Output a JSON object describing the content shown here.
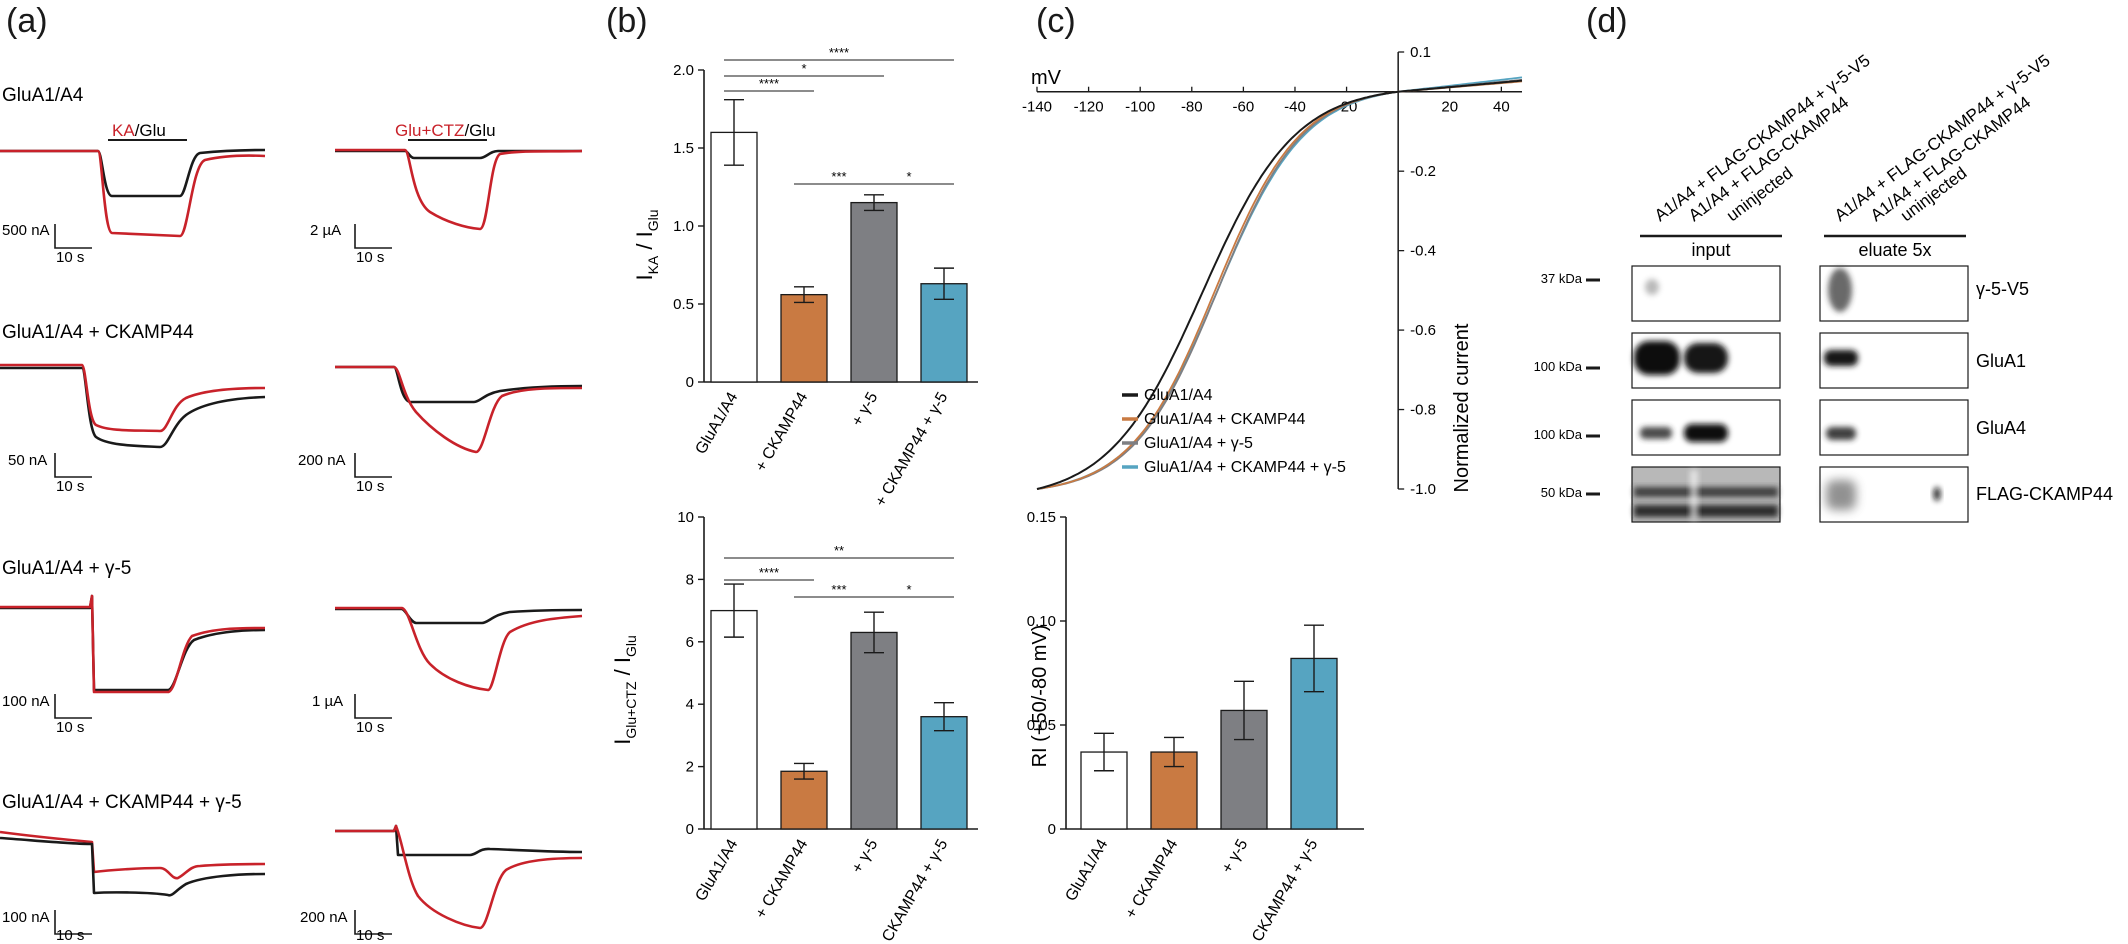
{
  "panel_labels": [
    "(a)",
    "(b)",
    "(c)",
    "(d)"
  ],
  "colors": {
    "black": "#1a1a1a",
    "red": "#c8222a",
    "white_bar": "#ffffff",
    "ckamp44": "#c97a42",
    "gamma5": "#7e7f83",
    "ckamp44_gamma5": "#56a4c1"
  },
  "panel_a": {
    "protocol_left": {
      "red": "KA",
      "sep": "/",
      "black": "Glu"
    },
    "protocol_right": {
      "red": "Glu+CTZ",
      "sep": "/",
      "black": "Glu"
    },
    "rows": [
      {
        "title": "GluA1/A4",
        "left_scale": "500 nA",
        "left_time": "10 s",
        "right_scale": "2 µA",
        "right_time": "10 s"
      },
      {
        "title": "GluA1/A4 + CKAMP44",
        "left_scale": "50 nA",
        "left_time": "10 s",
        "right_scale": "200 nA",
        "right_time": "10 s"
      },
      {
        "title": "GluA1/A4 + γ-5",
        "left_scale": "100 nA",
        "left_time": "10 s",
        "right_scale": "1 µA",
        "right_time": "10 s"
      },
      {
        "title": "GluA1/A4 + CKAMP44 + γ-5",
        "left_scale": "100 nA",
        "left_time": "10 s",
        "right_scale": "200 nA",
        "right_time": "10 s"
      }
    ]
  },
  "chart_data": [
    {
      "id": "b-top",
      "type": "bar",
      "ylabel_main": "I",
      "ylabel_sub1": "KA",
      "ylabel_sep": " / I",
      "ylabel_sub2": "Glu",
      "ylim": [
        0,
        2.0
      ],
      "yticks": [
        "0",
        "0.5",
        "1.0",
        "1.5",
        "2.0"
      ],
      "categories": [
        "GluA1/A4",
        "+ CKAMP44",
        "+ γ-5",
        "+ CKAMP44 + γ-5"
      ],
      "values": [
        1.6,
        0.56,
        1.15,
        0.63
      ],
      "errors": [
        0.21,
        0.05,
        0.05,
        0.1
      ],
      "significance": [
        {
          "from": 0,
          "to": 3,
          "label": "****"
        },
        {
          "from": 0,
          "to": 2,
          "label": "*"
        },
        {
          "from": 0,
          "to": 1,
          "label": "****"
        },
        {
          "from": 1,
          "to": 2,
          "label": "***"
        },
        {
          "from": 2,
          "to": 3,
          "label": "*"
        }
      ]
    },
    {
      "id": "b-bottom",
      "type": "bar",
      "ylabel_main": "I",
      "ylabel_sub1": "Glu+CTZ",
      "ylabel_sep": " / I",
      "ylabel_sub2": "Glu",
      "ylim": [
        0,
        10
      ],
      "yticks": [
        "0",
        "2",
        "4",
        "6",
        "8",
        "10"
      ],
      "categories": [
        "GluA1/A4",
        "+ CKAMP44",
        "+ γ-5",
        "+ CKAMP44 + γ-5"
      ],
      "values": [
        7.0,
        1.85,
        6.3,
        3.6
      ],
      "errors": [
        0.85,
        0.25,
        0.65,
        0.45
      ],
      "significance": [
        {
          "from": 0,
          "to": 3,
          "label": "**"
        },
        {
          "from": 0,
          "to": 1,
          "label": "****"
        },
        {
          "from": 1,
          "to": 2,
          "label": "***"
        },
        {
          "from": 2,
          "to": 3,
          "label": "*"
        }
      ]
    },
    {
      "id": "c-iv",
      "type": "line",
      "xlabel": "mV",
      "ylabel": "Normalized current",
      "xlim": [
        -140,
        48
      ],
      "ylim": [
        -1.0,
        0.1
      ],
      "xticks": [
        "-140",
        "-120",
        "-100",
        "-80",
        "-60",
        "-40",
        "-20",
        "20",
        "40"
      ],
      "xtick_values": [
        -140,
        -120,
        -100,
        -80,
        -60,
        -40,
        -20,
        20,
        40
      ],
      "yticks": [
        "0.1",
        "-0.2",
        "-0.4",
        "-0.6",
        "-0.8",
        "-1.0"
      ],
      "ytick_values": [
        0.1,
        -0.2,
        -0.4,
        -0.6,
        -0.8,
        -1.0
      ],
      "series": [
        {
          "name": "GluA1/A4",
          "vhalf": -76,
          "k": 18.0,
          "end": 0.028
        },
        {
          "name": "GluA1/A4 + CKAMP44",
          "vhalf": -71,
          "k": 16.5,
          "end": 0.026
        },
        {
          "name": "GluA1/A4 + γ-5",
          "vhalf": -70,
          "k": 16.5,
          "end": 0.03
        },
        {
          "name": "GluA1/A4 + CKAMP44 + γ-5",
          "vhalf": -70,
          "k": 17.0,
          "end": 0.036
        }
      ]
    },
    {
      "id": "c-ri",
      "type": "bar",
      "ylabel": "RI (+50/-80 mV)",
      "ylim": [
        0,
        0.15
      ],
      "yticks": [
        "0",
        "0.05",
        "0.10",
        "0.15"
      ],
      "categories": [
        "GluA1/A4",
        "+ CKAMP44",
        "+ γ-5",
        "+ CKAMP44 + γ-5"
      ],
      "values": [
        0.037,
        0.037,
        0.057,
        0.082
      ],
      "errors": [
        0.009,
        0.007,
        0.014,
        0.016
      ]
    }
  ],
  "panel_d": {
    "lane_labels_input": [
      "A1/A4 + FLAG-CKAMP44 + γ-5-V5",
      "A1/A4 + FLAG-CKAMP44",
      "uninjected"
    ],
    "lane_labels_eluate": [
      "A1/A4 + FLAG-CKAMP44 + γ-5-V5",
      "A1/A4 + FLAG-CKAMP44",
      "uninjected"
    ],
    "group_input": "input",
    "group_eluate": "eluate 5x",
    "rows": [
      {
        "marker": "37 kDa",
        "protein": "γ-5-V5"
      },
      {
        "marker": "100 kDa",
        "protein": "GluA1"
      },
      {
        "marker": "100 kDa",
        "protein": "GluA4"
      },
      {
        "marker": "50 kDa",
        "protein": "FLAG-CKAMP44"
      }
    ]
  }
}
